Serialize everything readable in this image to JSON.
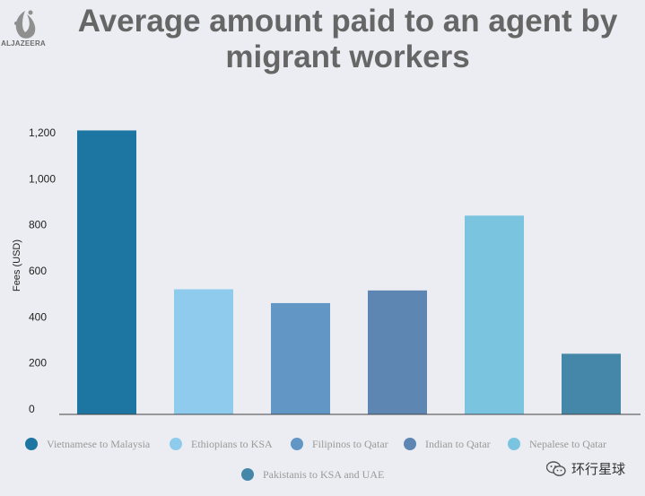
{
  "brand": {
    "logo_text": "ALJAZEERA"
  },
  "title": "Average amount paid to an agent by migrant workers",
  "watermark": {
    "text": "环行星球",
    "icon": "wechat-icon"
  },
  "chart_data": {
    "type": "bar",
    "title": "Average amount paid to an agent by migrant workers",
    "ylabel": "Fees (USD)",
    "xlabel": "",
    "ylim": [
      0,
      1200
    ],
    "yticks": [
      0,
      200,
      400,
      600,
      800,
      1000,
      1200
    ],
    "ytick_labels": [
      "0",
      "200",
      "400",
      "600",
      "800",
      "1,000",
      "1,200"
    ],
    "grid": false,
    "legend_position": "bottom",
    "categories": [
      "Vietnamese to Malaysia",
      "Ethiopians to KSA",
      "Filipinos to Qatar",
      "Indian to Qatar",
      "Nepalese to Qatar",
      "Pakistanis to KSA and UAE"
    ],
    "values": [
      1210,
      520,
      460,
      515,
      840,
      240
    ],
    "colors": [
      "#1c76a1",
      "#8ecbed",
      "#6296c4",
      "#5d87b2",
      "#7ac4df",
      "#4587a9"
    ]
  }
}
